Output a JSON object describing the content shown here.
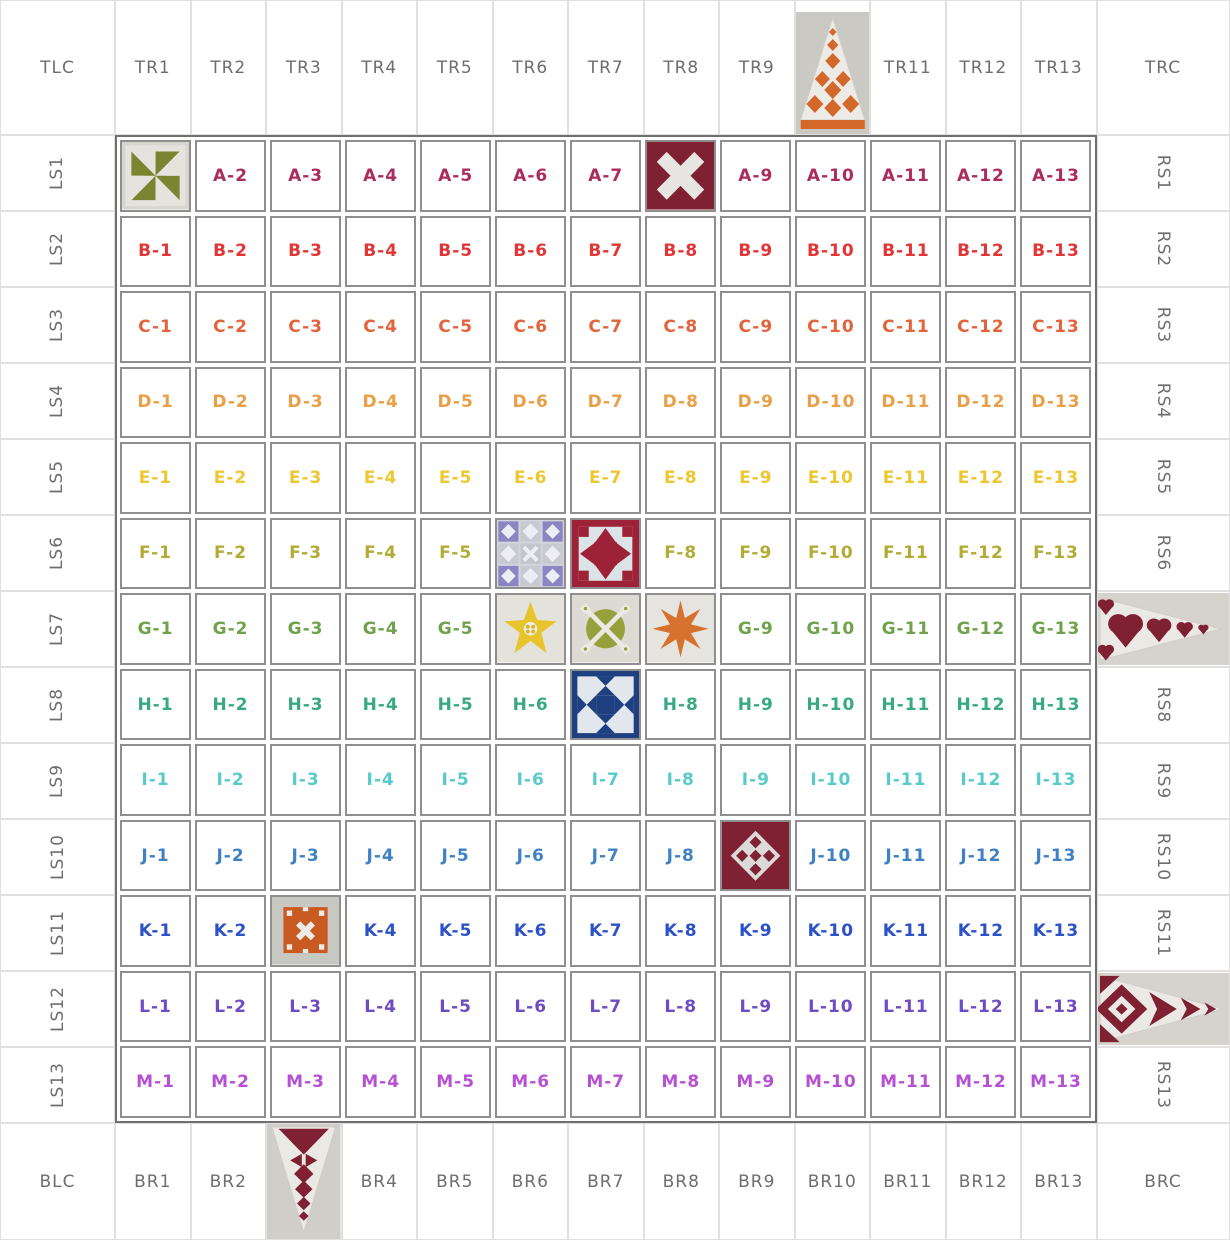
{
  "palette": {
    "header_text": "#6e6e6e",
    "grid_line": "#8f8f8f",
    "grid_outer_line": "#6f6f6f",
    "label_line": "#e0e0e0",
    "block_bg_gray": "#d5d3cc",
    "block_white": "#ebe9e4",
    "olive": "#7b8430",
    "orange": "#d4682a",
    "maroon": "#7f2033",
    "dark_red": "#9d2137",
    "purple": "#8b85c3",
    "yellow": "#e7c32c",
    "olive_green": "#97a13b",
    "navy": "#1e3f80",
    "pale_blue": "#dce3e6"
  },
  "top_row": [
    {
      "label": "TLC"
    },
    {
      "label": "TR1"
    },
    {
      "label": "TR2"
    },
    {
      "label": "TR3"
    },
    {
      "label": "TR4"
    },
    {
      "label": "TR5"
    },
    {
      "label": "TR6"
    },
    {
      "label": "TR7"
    },
    {
      "label": "TR8"
    },
    {
      "label": "TR9"
    },
    {
      "image": "orange-tree-pennant-up"
    },
    {
      "label": "TR11"
    },
    {
      "label": "TR12"
    },
    {
      "label": "TR13"
    },
    {
      "label": "TRC"
    }
  ],
  "left_col": [
    {
      "label": "LS1"
    },
    {
      "label": "LS2"
    },
    {
      "label": "LS3"
    },
    {
      "label": "LS4"
    },
    {
      "label": "LS5"
    },
    {
      "label": "LS6"
    },
    {
      "label": "LS7"
    },
    {
      "label": "LS8"
    },
    {
      "label": "LS9"
    },
    {
      "label": "LS10"
    },
    {
      "label": "LS11"
    },
    {
      "label": "LS12"
    },
    {
      "label": "LS13"
    }
  ],
  "right_col": [
    {
      "label": "RS1"
    },
    {
      "label": "RS2"
    },
    {
      "label": "RS3"
    },
    {
      "label": "RS4"
    },
    {
      "label": "RS5"
    },
    {
      "label": "RS6"
    },
    {
      "image": "maroon-hearts-pennant-right"
    },
    {
      "label": "RS8"
    },
    {
      "label": "RS9"
    },
    {
      "label": "RS10"
    },
    {
      "label": "RS11"
    },
    {
      "image": "maroon-diamonds-pennant-right"
    },
    {
      "label": "RS13"
    }
  ],
  "bottom_row": [
    {
      "label": "BLC"
    },
    {
      "label": "BR1"
    },
    {
      "label": "BR2"
    },
    {
      "image": "maroon-tree-pennant-down"
    },
    {
      "label": "BR4"
    },
    {
      "label": "BR5"
    },
    {
      "label": "BR6"
    },
    {
      "label": "BR7"
    },
    {
      "label": "BR8"
    },
    {
      "label": "BR9"
    },
    {
      "label": "BR10"
    },
    {
      "label": "BR11"
    },
    {
      "label": "BR12"
    },
    {
      "label": "BR13"
    },
    {
      "label": "BRC"
    }
  ],
  "rows": [
    {
      "letter": "A",
      "color": "#ab2d5e",
      "cells": [
        {
          "image": "green-pinwheel-block"
        },
        "A-2",
        "A-3",
        "A-4",
        "A-5",
        "A-6",
        "A-7",
        {
          "image": "maroon-cross-block"
        },
        "A-9",
        "A-10",
        "A-11",
        "A-12",
        "A-13"
      ]
    },
    {
      "letter": "B",
      "color": "#e23636",
      "cells": [
        "B-1",
        "B-2",
        "B-3",
        "B-4",
        "B-5",
        "B-6",
        "B-7",
        "B-8",
        "B-9",
        "B-10",
        "B-11",
        "B-12",
        "B-13"
      ]
    },
    {
      "letter": "C",
      "color": "#e2633c",
      "cells": [
        "C-1",
        "C-2",
        "C-3",
        "C-4",
        "C-5",
        "C-6",
        "C-7",
        "C-8",
        "C-9",
        "C-10",
        "C-11",
        "C-12",
        "C-13"
      ]
    },
    {
      "letter": "D",
      "color": "#e99f47",
      "cells": [
        "D-1",
        "D-2",
        "D-3",
        "D-4",
        "D-5",
        "D-6",
        "D-7",
        "D-8",
        "D-9",
        "D-10",
        "D-11",
        "D-12",
        "D-13"
      ]
    },
    {
      "letter": "E",
      "color": "#edc72f",
      "cells": [
        "E-1",
        "E-2",
        "E-3",
        "E-4",
        "E-5",
        "E-6",
        "E-7",
        "E-8",
        "E-9",
        "E-10",
        "E-11",
        "E-12",
        "E-13"
      ]
    },
    {
      "letter": "F",
      "color": "#b2ac35",
      "cells": [
        "F-1",
        "F-2",
        "F-3",
        "F-4",
        "F-5",
        {
          "image": "purple-ninepatch-block"
        },
        {
          "image": "red-sawtooth-star-block"
        },
        "F-8",
        "F-9",
        "F-10",
        "F-11",
        "F-12",
        "F-13"
      ]
    },
    {
      "letter": "G",
      "color": "#6fa24b",
      "cells": [
        "G-1",
        "G-2",
        "G-3",
        "G-4",
        "G-5",
        {
          "image": "yellow-star-block"
        },
        {
          "image": "olive-wheel-block"
        },
        {
          "image": "orange-eightpoint-star-block"
        },
        "G-9",
        "G-10",
        "G-11",
        "G-12",
        "G-13"
      ]
    },
    {
      "letter": "H",
      "color": "#38aa80",
      "cells": [
        "H-1",
        "H-2",
        "H-3",
        "H-4",
        "H-5",
        "H-6",
        {
          "image": "blue-ohio-star-block"
        },
        "H-8",
        "H-9",
        "H-10",
        "H-11",
        "H-12",
        "H-13"
      ]
    },
    {
      "letter": "I",
      "color": "#58caca",
      "cells": [
        "I-1",
        "I-2",
        "I-3",
        "I-4",
        "I-5",
        "I-6",
        "I-7",
        "I-8",
        "I-9",
        "I-10",
        "I-11",
        "I-12",
        "I-13"
      ]
    },
    {
      "letter": "J",
      "color": "#3f81c3",
      "cells": [
        "J-1",
        "J-2",
        "J-3",
        "J-4",
        "J-5",
        "J-6",
        "J-7",
        "J-8",
        {
          "image": "maroon-diamond-checker-block"
        },
        "J-10",
        "J-11",
        "J-12",
        "J-13"
      ]
    },
    {
      "letter": "K",
      "color": "#2d52c7",
      "cells": [
        "K-1",
        "K-2",
        {
          "image": "orange-cross-block"
        },
        "K-4",
        "K-5",
        "K-6",
        "K-7",
        "K-8",
        "K-9",
        "K-10",
        "K-11",
        "K-12",
        "K-13"
      ]
    },
    {
      "letter": "L",
      "color": "#6f4bc4",
      "cells": [
        "L-1",
        "L-2",
        "L-3",
        "L-4",
        "L-5",
        "L-6",
        "L-7",
        "L-8",
        "L-9",
        "L-10",
        "L-11",
        "L-12",
        "L-13"
      ]
    },
    {
      "letter": "M",
      "color": "#b751d3",
      "cells": [
        "M-1",
        "M-2",
        "M-3",
        "M-4",
        "M-5",
        "M-6",
        "M-7",
        "M-8",
        "M-9",
        "M-10",
        "M-11",
        "M-12",
        "M-13"
      ]
    }
  ]
}
